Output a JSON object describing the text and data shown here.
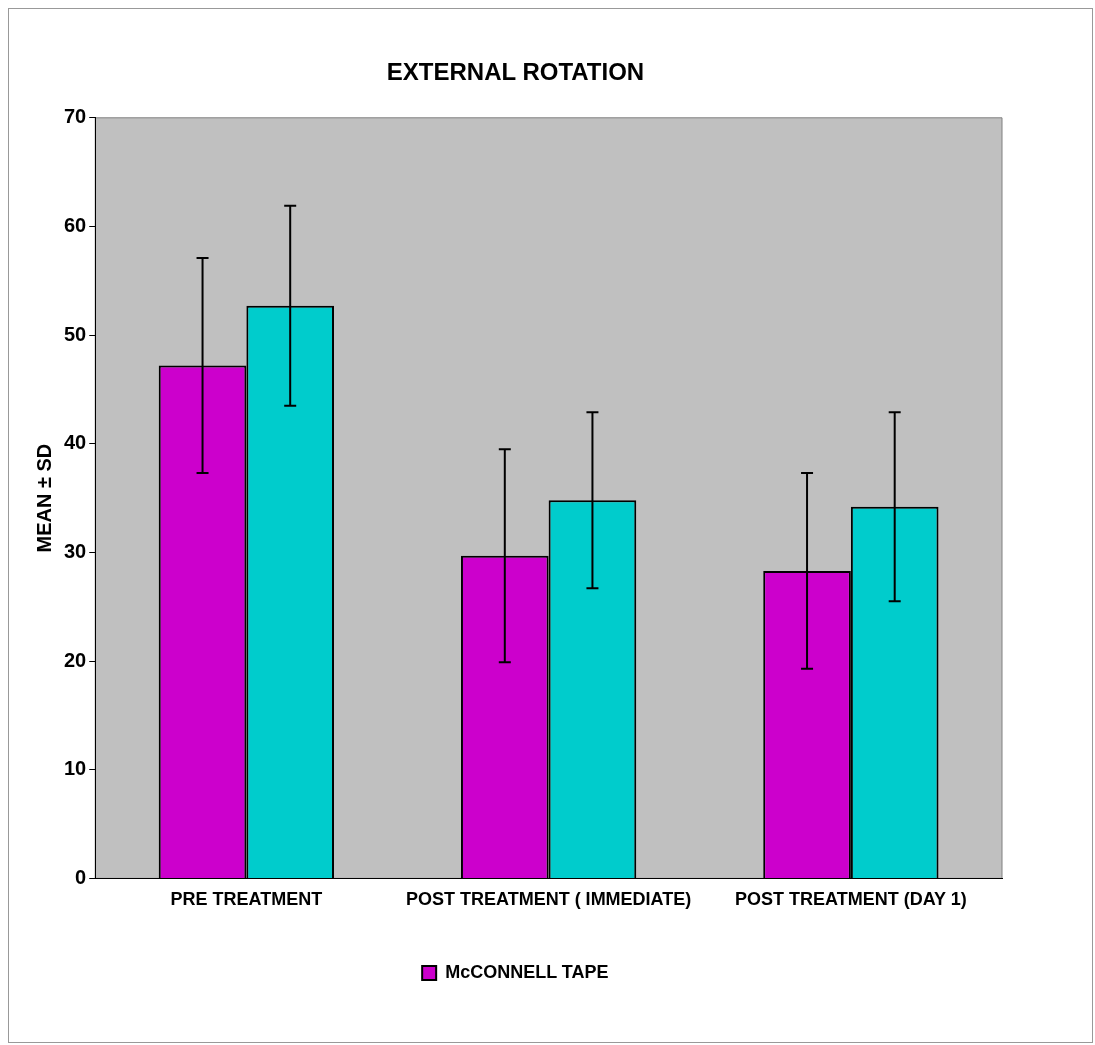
{
  "chart_data": {
    "type": "bar",
    "title": "EXTERNAL ROTATION",
    "ylabel": "MEAN ± SD",
    "categories": [
      "PRE TREATMENT",
      "POST TREATMENT ( IMMEDIATE)",
      "POST TREATMENT (DAY 1)"
    ],
    "series": [
      {
        "name": "McCONNELL TAPE",
        "color": "#cc00cc",
        "values": [
          47.2,
          29.7,
          28.3
        ],
        "errors": [
          9.9,
          9.8,
          9.0
        ]
      },
      {
        "color": "#00cccc",
        "values": [
          52.7,
          34.8,
          34.2
        ],
        "errors": [
          9.2,
          8.1,
          8.7
        ]
      }
    ],
    "ylim": [
      0,
      70
    ],
    "yticks": [
      0,
      10,
      20,
      30,
      40,
      50,
      60,
      70
    ],
    "grid": false,
    "legend": "bottom"
  }
}
